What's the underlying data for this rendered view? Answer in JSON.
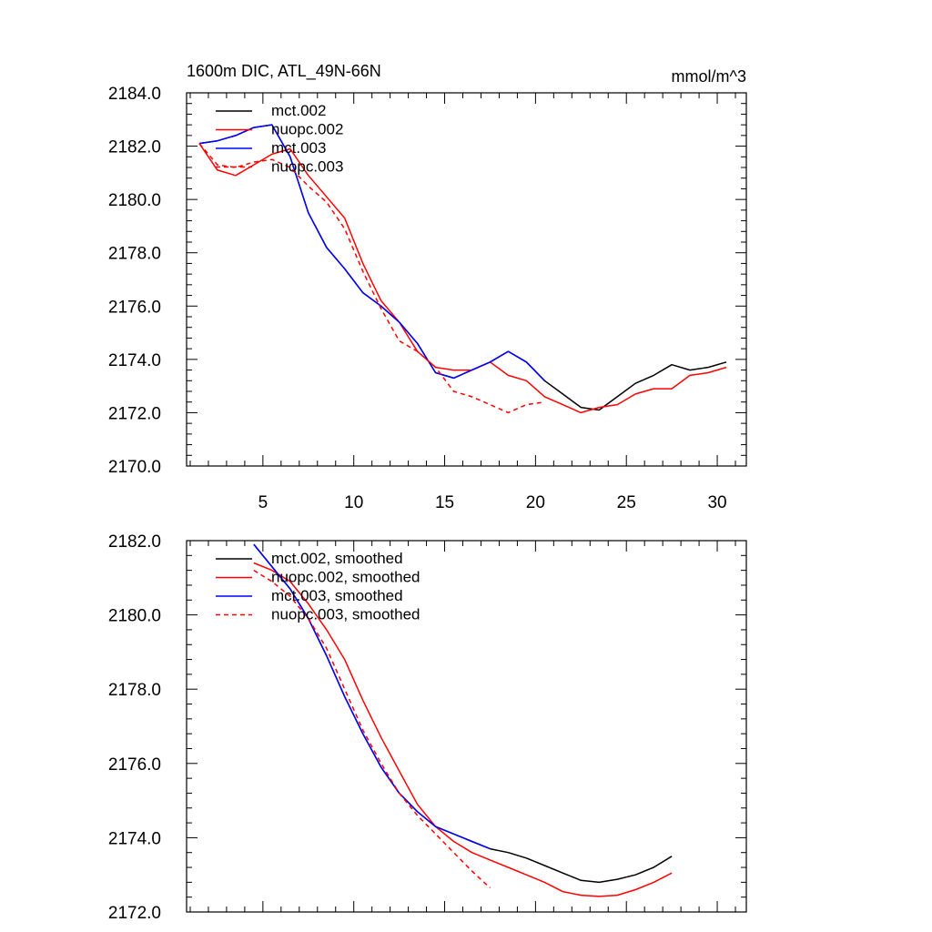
{
  "chart_data": [
    {
      "type": "line",
      "title": "1600m DIC, ATL_49N-66N",
      "units": "mmol/m^3",
      "xlabel": "",
      "ylabel": "",
      "xlim": [
        0.8,
        31.6
      ],
      "ylim": [
        2170.0,
        2184.0
      ],
      "xticks": [
        5,
        10,
        15,
        20,
        25,
        30
      ],
      "xtick_labels": [
        "5",
        "10",
        "15",
        "20",
        "25",
        "30"
      ],
      "yticks": [
        2170,
        2172,
        2174,
        2176,
        2178,
        2180,
        2182,
        2184
      ],
      "ytick_labels": [
        "2170.0",
        "2172.0",
        "2174.0",
        "2176.0",
        "2178.0",
        "2180.0",
        "2182.0",
        "2184.0"
      ],
      "legend_position": "top-left",
      "series": [
        {
          "name": "mct.002",
          "color": "#000000",
          "dash": "solid",
          "x": [
            1.5,
            2.5,
            3.5,
            4.5,
            5.5,
            6.5,
            7.5,
            8.5,
            9.5,
            10.5,
            11.5,
            12.5,
            13.5,
            14.5,
            15.5,
            16.5,
            17.5,
            18.5,
            19.5,
            20.5,
            21.5,
            22.5,
            23.5,
            24.5,
            25.5,
            26.5,
            27.5,
            28.5,
            29.5,
            30.5
          ],
          "values": [
            2182.1,
            2182.2,
            2182.4,
            2182.7,
            2182.8,
            2181.6,
            2179.5,
            2178.2,
            2177.4,
            2176.5,
            2176.0,
            2175.4,
            2174.6,
            2173.5,
            2173.3,
            2173.6,
            2173.9,
            2174.3,
            2173.9,
            2173.2,
            2172.7,
            2172.2,
            2172.1,
            2172.6,
            2173.1,
            2173.4,
            2173.8,
            2173.6,
            2173.7,
            2173.9
          ]
        },
        {
          "name": "nuopc.002",
          "color": "#ff0000",
          "dash": "solid",
          "x": [
            1.5,
            2.5,
            3.5,
            4.5,
            5.5,
            6.5,
            7.5,
            8.5,
            9.5,
            10.5,
            11.5,
            12.5,
            13.5,
            14.5,
            15.5,
            16.5,
            17.5,
            18.5,
            19.5,
            20.5,
            21.5,
            22.5,
            23.5,
            24.5,
            25.5,
            26.5,
            27.5,
            28.5,
            29.5,
            30.5
          ],
          "values": [
            2182.1,
            2181.1,
            2180.9,
            2181.3,
            2181.7,
            2181.9,
            2180.9,
            2180.1,
            2179.3,
            2177.6,
            2176.2,
            2175.4,
            2174.3,
            2173.7,
            2173.6,
            2173.6,
            2173.9,
            2173.4,
            2173.2,
            2172.6,
            2172.3,
            2172.0,
            2172.2,
            2172.3,
            2172.7,
            2172.9,
            2172.9,
            2173.4,
            2173.5,
            2173.7
          ]
        },
        {
          "name": "mct.003",
          "color": "#0000ff",
          "dash": "solid",
          "x": [
            1.5,
            2.5,
            3.5,
            4.5,
            5.5,
            6.5,
            7.5,
            8.5,
            9.5,
            10.5,
            11.5,
            12.5,
            13.5,
            14.5,
            15.5,
            16.5,
            17.5,
            18.5,
            19.5,
            20.5
          ],
          "values": [
            2182.1,
            2182.2,
            2182.4,
            2182.7,
            2182.8,
            2181.6,
            2179.5,
            2178.2,
            2177.4,
            2176.5,
            2176.0,
            2175.4,
            2174.6,
            2173.5,
            2173.3,
            2173.6,
            2173.9,
            2174.3,
            2173.9,
            2173.2
          ]
        },
        {
          "name": "nuopc.003",
          "color": "#ff0000",
          "dash": "dashed",
          "x": [
            1.5,
            2.5,
            3.5,
            4.5,
            5.5,
            6.5,
            7.5,
            8.5,
            9.5,
            10.5,
            11.5,
            12.5,
            13.5,
            14.5,
            15.5,
            16.5,
            17.5,
            18.5,
            19.5,
            20.5
          ],
          "values": [
            2182.1,
            2181.3,
            2181.2,
            2181.4,
            2181.5,
            2181.2,
            2180.5,
            2179.9,
            2178.9,
            2177.3,
            2175.9,
            2174.7,
            2174.3,
            2173.7,
            2172.8,
            2172.6,
            2172.3,
            2172.0,
            2172.3,
            2172.4
          ]
        }
      ]
    },
    {
      "type": "line",
      "title": "",
      "xlabel": "",
      "ylabel": "",
      "xlim": [
        0.8,
        31.6
      ],
      "ylim": [
        2172.0,
        2182.0
      ],
      "xticks": [
        5,
        10,
        15,
        20,
        25,
        30
      ],
      "xtick_labels": [],
      "yticks": [
        2172,
        2174,
        2176,
        2178,
        2180,
        2182
      ],
      "ytick_labels": [
        "2172.0",
        "2174.0",
        "2176.0",
        "2178.0",
        "2180.0",
        "2182.0"
      ],
      "legend_position": "top-left",
      "series": [
        {
          "name": "mct.002, smoothed",
          "color": "#000000",
          "dash": "solid",
          "x": [
            4.5,
            5.5,
            6.5,
            7.5,
            8.5,
            9.5,
            10.5,
            11.5,
            12.5,
            13.5,
            14.5,
            15.5,
            16.5,
            17.5,
            18.5,
            19.5,
            20.5,
            21.5,
            22.5,
            23.5,
            24.5,
            25.5,
            26.5,
            27.5
          ],
          "values": [
            2181.9,
            2181.3,
            2180.7,
            2179.9,
            2178.9,
            2177.8,
            2176.8,
            2175.9,
            2175.2,
            2174.7,
            2174.3,
            2174.1,
            2173.9,
            2173.7,
            2173.6,
            2173.45,
            2173.25,
            2173.05,
            2172.85,
            2172.8,
            2172.88,
            2173.0,
            2173.2,
            2173.5
          ]
        },
        {
          "name": "nuopc.002, smoothed",
          "color": "#ff0000",
          "dash": "solid",
          "x": [
            4.5,
            5.5,
            6.5,
            7.5,
            8.5,
            9.5,
            10.5,
            11.5,
            12.5,
            13.5,
            14.5,
            15.5,
            16.5,
            17.5,
            18.5,
            19.5,
            20.5,
            21.5,
            22.5,
            23.5,
            24.5,
            25.5,
            26.5,
            27.5
          ],
          "values": [
            2181.4,
            2181.2,
            2180.9,
            2180.3,
            2179.6,
            2178.8,
            2177.7,
            2176.7,
            2175.8,
            2174.9,
            2174.3,
            2173.9,
            2173.6,
            2173.4,
            2173.2,
            2173.0,
            2172.8,
            2172.55,
            2172.45,
            2172.42,
            2172.45,
            2172.6,
            2172.8,
            2173.05
          ]
        },
        {
          "name": "mct.003, smoothed",
          "color": "#0000ff",
          "dash": "solid",
          "x": [
            4.5,
            5.5,
            6.5,
            7.5,
            8.5,
            9.5,
            10.5,
            11.5,
            12.5,
            13.5,
            14.5,
            15.5,
            16.5,
            17.5
          ],
          "values": [
            2181.9,
            2181.3,
            2180.7,
            2179.9,
            2178.9,
            2177.8,
            2176.8,
            2175.9,
            2175.2,
            2174.7,
            2174.3,
            2174.1,
            2173.9,
            2173.7
          ]
        },
        {
          "name": "nuopc.003, smoothed",
          "color": "#ff0000",
          "dash": "dashed",
          "x": [
            4.5,
            5.5,
            6.5,
            7.5,
            8.5,
            9.5,
            10.5,
            11.5,
            12.5,
            13.5,
            14.5,
            15.5,
            16.5,
            17.5
          ],
          "values": [
            2181.2,
            2180.9,
            2180.5,
            2179.9,
            2179.1,
            2178.0,
            2176.9,
            2176.0,
            2175.2,
            2174.6,
            2174.1,
            2173.6,
            2173.1,
            2172.65
          ]
        }
      ]
    }
  ]
}
